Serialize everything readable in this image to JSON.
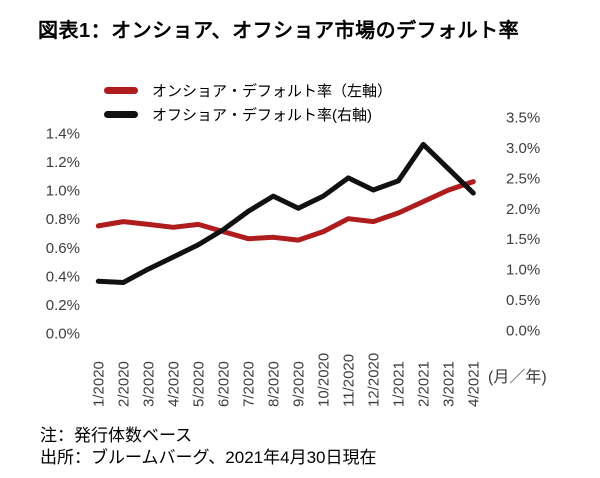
{
  "title": "図表1：オンショア、オフショア市場のデフォルト率",
  "legend": {
    "items": [
      {
        "label": "オンショア・デフォルト率（左軸）",
        "color": "#AE1C1E"
      },
      {
        "label": "オフショア・デフォルト率(右軸)",
        "color": "#111111"
      }
    ]
  },
  "chart_data": {
    "type": "line",
    "categories": [
      "1/2020",
      "2/2020",
      "3/2020",
      "4/2020",
      "5/2020",
      "6/2020",
      "7/2020",
      "8/2020",
      "9/2020",
      "10/2020",
      "11/2020",
      "12/2020",
      "1/2021",
      "2/2021",
      "3/2021",
      "4/2021"
    ],
    "series": [
      {
        "name": "オンショア・デフォルト率（左軸）",
        "axis": "left",
        "color": "#AE1C1E",
        "values": [
          0.75,
          0.78,
          0.76,
          0.74,
          0.76,
          0.71,
          0.66,
          0.67,
          0.65,
          0.71,
          0.8,
          0.78,
          0.84,
          0.92,
          1.0,
          1.06
        ]
      },
      {
        "name": "オフショア・デフォルト率(右軸)",
        "axis": "right",
        "color": "#111111",
        "values": [
          0.8,
          0.78,
          1.0,
          1.2,
          1.4,
          1.65,
          1.95,
          2.2,
          2.0,
          2.2,
          2.5,
          2.3,
          2.45,
          3.05,
          2.65,
          2.25
        ]
      }
    ],
    "left_axis": {
      "tick_labels": [
        "0.0%",
        "0.2%",
        "0.4%",
        "0.6%",
        "0.8%",
        "1.0%",
        "1.2%",
        "1.4%"
      ],
      "tick_values": [
        0,
        0.2,
        0.4,
        0.6,
        0.8,
        1.0,
        1.2,
        1.4
      ],
      "range": [
        0,
        1.4
      ]
    },
    "right_axis": {
      "tick_labels": [
        "0.0%",
        "0.5%",
        "1.0%",
        "1.5%",
        "2.0%",
        "2.5%",
        "3.0%",
        "3.5%"
      ],
      "tick_values": [
        0,
        0.5,
        1.0,
        1.5,
        2.0,
        2.5,
        3.0,
        3.5
      ],
      "range": [
        0,
        3.5
      ]
    },
    "x_unit_label": "(月／年)",
    "grid": false,
    "legend_position": "top-left"
  },
  "notes": [
    "注：発行体数ベース",
    "出所：ブルームバーグ、2021年4月30日現在"
  ],
  "tick_color": "#3d3d3d"
}
